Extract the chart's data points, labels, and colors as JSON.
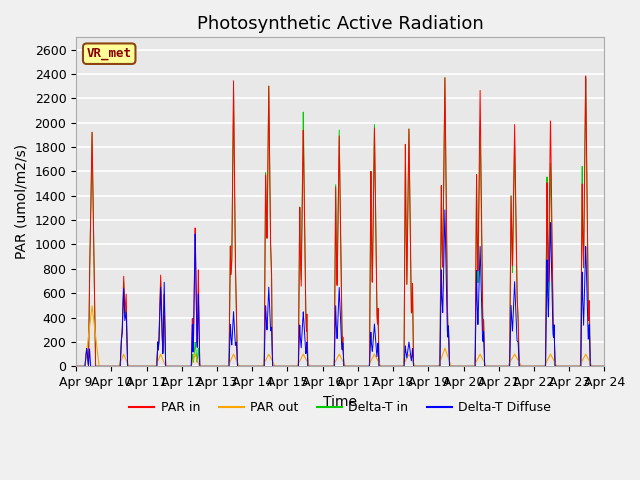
{
  "title": "Photosynthetic Active Radiation",
  "ylabel": "PAR (umol/m2/s)",
  "xlabel": "Time",
  "annotation_text": "VR_met",
  "ylim": [
    0,
    2700
  ],
  "legend_labels": [
    "PAR in",
    "PAR out",
    "Delta-T in",
    "Delta-T Diffuse"
  ],
  "legend_colors": [
    "#ff0000",
    "#ffa500",
    "#00cc00",
    "#0000ff"
  ],
  "background_color": "#e8e8e8",
  "plot_bg_color": "#e8e8e8",
  "x_tick_labels": [
    "Apr 9",
    "Apr 10",
    "Apr 11",
    "Apr 12",
    "Apr 13",
    "Apr 14",
    "Apr 15",
    "Apr 16",
    "Apr 17",
    "Apr 18",
    "Apr 19",
    "Apr 20",
    "Apr 21",
    "Apr 22",
    "Apr 23",
    "Apr 24"
  ],
  "days": 15,
  "pts_per_day": 288,
  "title_fontsize": 13,
  "label_fontsize": 10,
  "tick_fontsize": 9
}
